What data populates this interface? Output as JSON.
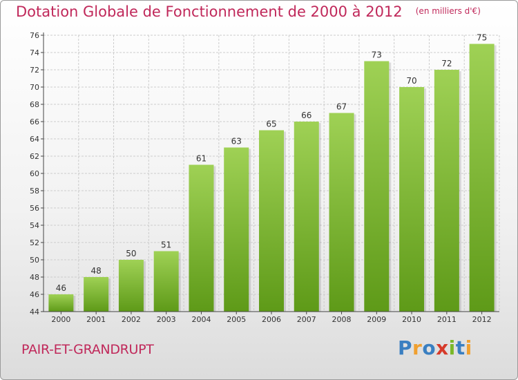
{
  "chart_data": {
    "type": "bar",
    "title": "Dotation Globale de Fonctionnement de 2000 à 2012",
    "subtitle": "(en milliers d'€)",
    "categories": [
      "2000",
      "2001",
      "2002",
      "2003",
      "2004",
      "2005",
      "2006",
      "2007",
      "2008",
      "2009",
      "2010",
      "2011",
      "2012"
    ],
    "values": [
      46,
      48,
      50,
      51,
      61,
      63,
      65,
      66,
      67,
      73,
      70,
      72,
      75
    ],
    "ylim": [
      44,
      76
    ],
    "yticks": [
      44,
      46,
      48,
      50,
      52,
      54,
      56,
      58,
      60,
      62,
      64,
      66,
      68,
      70,
      72,
      74,
      76
    ],
    "xlabel": "",
    "ylabel": "",
    "grid": true,
    "bar_color_top": "#9fd155",
    "bar_color_bottom": "#5e9a18"
  },
  "footer": {
    "commune": "PAIR-ET-GRANDRUPT",
    "brand": "Proxiti",
    "brand_letters": [
      "P",
      "r",
      "o",
      "x",
      "i",
      "t",
      "i"
    ],
    "brand_colors": [
      "#3a7fc1",
      "#f0a030",
      "#3a7fc1",
      "#d63a2a",
      "#7ab828",
      "#3a7fc1",
      "#f0a030"
    ]
  },
  "colors": {
    "title": "#c0285a",
    "axis": "#444444",
    "grid": "#cccccc"
  }
}
